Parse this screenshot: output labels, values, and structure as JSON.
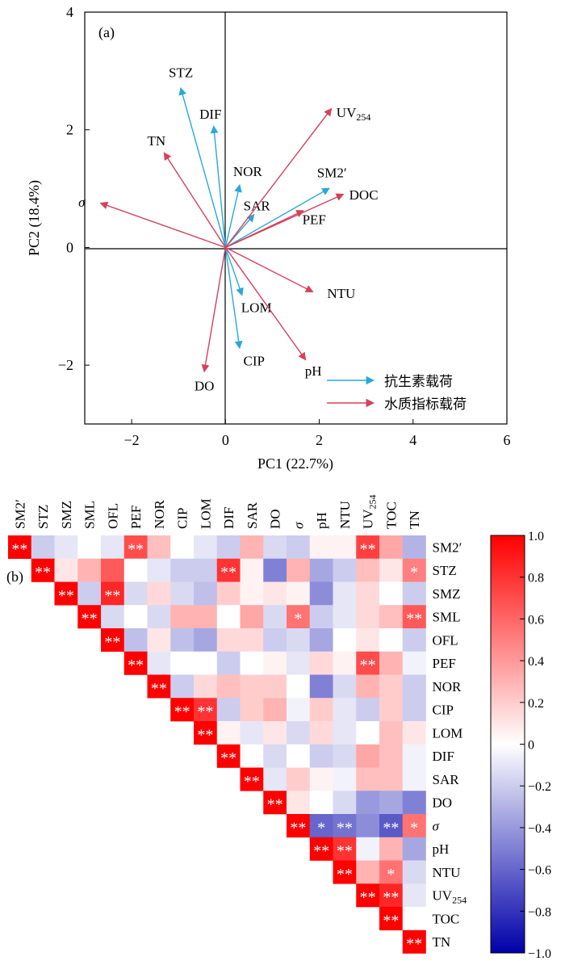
{
  "chart_data": [
    {
      "type": "biplot",
      "panel_label": "(a)",
      "xlabel": "PC1 (22.7%)",
      "ylabel": "PC2 (18.4%)",
      "xlim": [
        -3,
        6
      ],
      "ylim": [
        -3,
        4
      ],
      "xticks": [
        -2,
        0,
        2,
        4,
        6
      ],
      "yticks": [
        -2,
        0,
        2,
        4
      ],
      "series": [
        {
          "name": "抗生素载荷",
          "color": "#29a8d8",
          "vectors": [
            {
              "label": "STZ",
              "x": -0.95,
              "y": 2.7
            },
            {
              "label": "DIF",
              "x": -0.25,
              "y": 2.05
            },
            {
              "label": "NOR",
              "x": 0.3,
              "y": 1.05
            },
            {
              "label": "SAR",
              "x": 0.6,
              "y": 0.55
            },
            {
              "label": "SM2′",
              "x": 2.2,
              "y": 1.0
            },
            {
              "label": "LOM",
              "x": 0.35,
              "y": -0.8
            },
            {
              "label": "CIP",
              "x": 0.3,
              "y": -1.7
            }
          ]
        },
        {
          "name": "水质指标载荷",
          "color": "#d5405a",
          "vectors": [
            {
              "label": "UV254",
              "x": 2.25,
              "y": 2.35
            },
            {
              "label": "TN",
              "x": -1.3,
              "y": 1.6
            },
            {
              "label": "σ",
              "x": -2.65,
              "y": 0.75
            },
            {
              "label": "DOC",
              "x": 2.5,
              "y": 0.9
            },
            {
              "label": "PEF",
              "x": 1.65,
              "y": 0.62
            },
            {
              "label": "NTU",
              "x": 1.85,
              "y": -0.75
            },
            {
              "label": "pH",
              "x": 1.7,
              "y": -1.9
            },
            {
              "label": "DO",
              "x": -0.45,
              "y": -2.1
            }
          ]
        }
      ]
    },
    {
      "type": "heatmap",
      "panel_label": "(b)",
      "variables": [
        "SM2′",
        "STZ",
        "SMZ",
        "SML",
        "OFL",
        "PEF",
        "NOR",
        "CIP",
        "LOM",
        "DIF",
        "SAR",
        "DO",
        "σ",
        "pH",
        "NTU",
        "UV254",
        "TOC",
        "TN"
      ],
      "colorbar": {
        "min": -1.0,
        "max": 1.0,
        "ticks": [
          "1.0",
          "0.8",
          "0.6",
          "0.4",
          "0.2",
          "0",
          "−0.2",
          "−0.4",
          "−0.6",
          "−0.8",
          "−1.0"
        ]
      },
      "correlations": [
        [
          1,
          -0.2,
          -0.1,
          0.0,
          -0.1,
          0.7,
          0.25,
          0.0,
          -0.1,
          -0.2,
          0.3,
          -0.15,
          -0.2,
          0.05,
          0.05,
          0.75,
          0.35,
          -0.3
        ],
        [
          null,
          1,
          0.1,
          0.3,
          0.65,
          0.0,
          -0.1,
          -0.2,
          -0.2,
          0.8,
          0.05,
          -0.5,
          0.3,
          -0.35,
          -0.2,
          0.25,
          0.1,
          0.5
        ],
        [
          null,
          null,
          1,
          -0.2,
          0.85,
          -0.15,
          0.15,
          -0.15,
          -0.25,
          0.2,
          0.05,
          0.1,
          0.05,
          -0.45,
          -0.1,
          0.15,
          0.0,
          -0.2
        ],
        [
          null,
          null,
          null,
          1,
          -0.15,
          0.0,
          -0.15,
          0.3,
          0.3,
          0.0,
          0.35,
          -0.15,
          0.55,
          -0.2,
          -0.1,
          0.15,
          0.25,
          0.65
        ],
        [
          null,
          null,
          null,
          null,
          1,
          -0.25,
          0.1,
          -0.25,
          -0.35,
          0.15,
          0.15,
          -0.2,
          -0.15,
          -0.35,
          0.0,
          0.1,
          0.0,
          -0.2
        ],
        [
          null,
          null,
          null,
          null,
          null,
          1,
          -0.1,
          0.0,
          0.0,
          -0.2,
          0.0,
          0.05,
          -0.1,
          0.15,
          0.05,
          0.7,
          0.3,
          -0.05
        ],
        [
          null,
          null,
          null,
          null,
          null,
          null,
          1,
          -0.2,
          0.15,
          0.25,
          0.2,
          0.2,
          0.0,
          -0.5,
          -0.15,
          0.3,
          0.2,
          -0.2
        ],
        [
          null,
          null,
          null,
          null,
          null,
          null,
          null,
          1,
          0.8,
          -0.2,
          0.2,
          0.3,
          -0.05,
          0.2,
          -0.1,
          -0.2,
          0.2,
          -0.2
        ],
        [
          null,
          null,
          null,
          null,
          null,
          null,
          null,
          null,
          1,
          0.05,
          -0.1,
          0.1,
          -0.15,
          0.15,
          -0.1,
          0.0,
          0.25,
          0.1
        ],
        [
          null,
          null,
          null,
          null,
          null,
          null,
          null,
          null,
          null,
          1,
          0.0,
          -0.15,
          0.0,
          -0.2,
          -0.15,
          0.35,
          0.25,
          -0.05
        ],
        [
          null,
          null,
          null,
          null,
          null,
          null,
          null,
          null,
          null,
          null,
          1,
          -0.1,
          0.2,
          0.05,
          -0.05,
          0.25,
          0.25,
          -0.05
        ],
        [
          null,
          null,
          null,
          null,
          null,
          null,
          null,
          null,
          null,
          null,
          null,
          1,
          0.1,
          0.0,
          -0.15,
          -0.4,
          -0.35,
          -0.5
        ],
        [
          null,
          null,
          null,
          null,
          null,
          null,
          null,
          null,
          null,
          null,
          null,
          null,
          1,
          -0.6,
          -0.55,
          -0.45,
          -0.65,
          0.55
        ],
        [
          null,
          null,
          null,
          null,
          null,
          null,
          null,
          null,
          null,
          null,
          null,
          null,
          null,
          1,
          0.8,
          -0.05,
          0.3,
          -0.35
        ],
        [
          null,
          null,
          null,
          null,
          null,
          null,
          null,
          null,
          null,
          null,
          null,
          null,
          null,
          null,
          1,
          0.3,
          0.55,
          -0.15
        ],
        [
          null,
          null,
          null,
          null,
          null,
          null,
          null,
          null,
          null,
          null,
          null,
          null,
          null,
          null,
          null,
          1,
          0.85,
          -0.1
        ],
        [
          null,
          null,
          null,
          null,
          null,
          null,
          null,
          null,
          null,
          null,
          null,
          null,
          null,
          null,
          null,
          null,
          1,
          0.0
        ],
        [
          null,
          null,
          null,
          null,
          null,
          null,
          null,
          null,
          null,
          null,
          null,
          null,
          null,
          null,
          null,
          null,
          null,
          1
        ]
      ],
      "significance": [
        [
          0,
          0,
          "**"
        ],
        [
          0,
          5,
          "**"
        ],
        [
          0,
          15,
          "**"
        ],
        [
          1,
          1,
          "**"
        ],
        [
          1,
          9,
          "**"
        ],
        [
          1,
          17,
          "*"
        ],
        [
          2,
          2,
          "**"
        ],
        [
          2,
          4,
          "**"
        ],
        [
          3,
          3,
          "**"
        ],
        [
          3,
          12,
          "*"
        ],
        [
          3,
          17,
          "**"
        ],
        [
          4,
          4,
          "**"
        ],
        [
          5,
          5,
          "**"
        ],
        [
          5,
          15,
          "**"
        ],
        [
          6,
          6,
          "**"
        ],
        [
          7,
          7,
          "**"
        ],
        [
          7,
          8,
          "**"
        ],
        [
          8,
          8,
          "**"
        ],
        [
          9,
          9,
          "**"
        ],
        [
          10,
          10,
          "**"
        ],
        [
          11,
          11,
          "**"
        ],
        [
          12,
          12,
          "**"
        ],
        [
          12,
          13,
          "*"
        ],
        [
          12,
          14,
          "**"
        ],
        [
          12,
          16,
          "**"
        ],
        [
          12,
          17,
          "*"
        ],
        [
          13,
          13,
          "**"
        ],
        [
          13,
          14,
          "**"
        ],
        [
          14,
          14,
          "**"
        ],
        [
          14,
          16,
          "*"
        ],
        [
          15,
          15,
          "**"
        ],
        [
          15,
          16,
          "**"
        ],
        [
          16,
          16,
          "**"
        ],
        [
          17,
          17,
          "**"
        ]
      ]
    }
  ]
}
